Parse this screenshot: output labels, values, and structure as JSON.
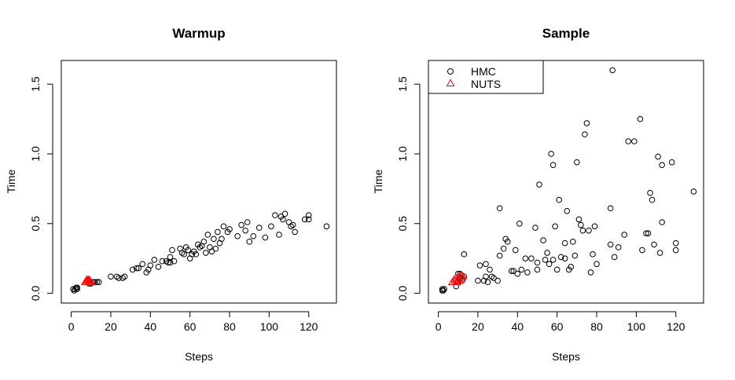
{
  "colors": {
    "hmc": "#000000",
    "nuts": "#ff0000",
    "frame": "#000000",
    "background": "#ffffff"
  },
  "chart_data": [
    {
      "type": "scatter",
      "title": "Warmup",
      "xlabel": "Steps",
      "ylabel": "Time",
      "xlim": [
        -5,
        134
      ],
      "ylim": [
        -0.07,
        1.67
      ],
      "xticks": [
        0,
        20,
        40,
        60,
        80,
        100,
        120
      ],
      "yticks": [
        0.0,
        0.5,
        1.0,
        1.5
      ],
      "xtick_labels": [
        "0",
        "20",
        "40",
        "60",
        "80",
        "100",
        "120"
      ],
      "ytick_labels": [
        "0.0",
        "0.5",
        "1.0",
        "1.5"
      ],
      "legend": null,
      "series": [
        {
          "marker": "circle",
          "color": "#000000",
          "points": [
            [
              1,
              0.03
            ],
            [
              1.5,
              0.02
            ],
            [
              2,
              0.03
            ],
            [
              2.5,
              0.04
            ],
            [
              3,
              0.03
            ],
            [
              3,
              0.04
            ],
            [
              9,
              0.07
            ],
            [
              10,
              0.07
            ],
            [
              11,
              0.08
            ],
            [
              12,
              0.08
            ],
            [
              13,
              0.08
            ],
            [
              14,
              0.08
            ],
            [
              20,
              0.12
            ],
            [
              23,
              0.12
            ],
            [
              24,
              0.11
            ],
            [
              26,
              0.11
            ],
            [
              27,
              0.12
            ],
            [
              31,
              0.17
            ],
            [
              33,
              0.18
            ],
            [
              34,
              0.18
            ],
            [
              36,
              0.21
            ],
            [
              38,
              0.15
            ],
            [
              39,
              0.17
            ],
            [
              40,
              0.2
            ],
            [
              42,
              0.24
            ],
            [
              44,
              0.19
            ],
            [
              46,
              0.23
            ],
            [
              48,
              0.23
            ],
            [
              49,
              0.22
            ],
            [
              50,
              0.26
            ],
            [
              50,
              0.22
            ],
            [
              51,
              0.31
            ],
            [
              52,
              0.23
            ],
            [
              55,
              0.32
            ],
            [
              56,
              0.29
            ],
            [
              57,
              0.28
            ],
            [
              58,
              0.33
            ],
            [
              59,
              0.31
            ],
            [
              60,
              0.25
            ],
            [
              61,
              0.28
            ],
            [
              62,
              0.3
            ],
            [
              63,
              0.28
            ],
            [
              64,
              0.35
            ],
            [
              65,
              0.33
            ],
            [
              66,
              0.34
            ],
            [
              67,
              0.37
            ],
            [
              68,
              0.29
            ],
            [
              69,
              0.42
            ],
            [
              70,
              0.33
            ],
            [
              71,
              0.3
            ],
            [
              72,
              0.39
            ],
            [
              73,
              0.32
            ],
            [
              74,
              0.44
            ],
            [
              75,
              0.36
            ],
            [
              76,
              0.39
            ],
            [
              77,
              0.48
            ],
            [
              79,
              0.44
            ],
            [
              80,
              0.46
            ],
            [
              84,
              0.41
            ],
            [
              86,
              0.49
            ],
            [
              88,
              0.45
            ],
            [
              89,
              0.51
            ],
            [
              90,
              0.37
            ],
            [
              92,
              0.41
            ],
            [
              95,
              0.47
            ],
            [
              98,
              0.4
            ],
            [
              101,
              0.48
            ],
            [
              103,
              0.56
            ],
            [
              105,
              0.42
            ],
            [
              106,
              0.55
            ],
            [
              107,
              0.53
            ],
            [
              108,
              0.57
            ],
            [
              110,
              0.51
            ],
            [
              111,
              0.48
            ],
            [
              112,
              0.49
            ],
            [
              113,
              0.44
            ],
            [
              118,
              0.53
            ],
            [
              120,
              0.56
            ],
            [
              120,
              0.53
            ],
            [
              129,
              0.48
            ]
          ]
        },
        {
          "marker": "triangle",
          "color": "#ff0000",
          "points": [
            [
              7,
              0.08
            ],
            [
              7.5,
              0.09
            ],
            [
              8,
              0.09
            ],
            [
              8,
              0.1
            ],
            [
              8.5,
              0.08
            ],
            [
              9,
              0.09
            ],
            [
              9,
              0.1
            ],
            [
              9.5,
              0.09
            ],
            [
              10,
              0.08
            ]
          ]
        }
      ]
    },
    {
      "type": "scatter",
      "title": "Sample",
      "xlabel": "Steps",
      "ylabel": "Time",
      "xlim": [
        -5,
        134
      ],
      "ylim": [
        -0.07,
        1.67
      ],
      "xticks": [
        0,
        20,
        40,
        60,
        80,
        100,
        120
      ],
      "yticks": [
        0.0,
        0.5,
        1.0,
        1.5
      ],
      "xtick_labels": [
        "0",
        "20",
        "40",
        "60",
        "80",
        "100",
        "120"
      ],
      "ytick_labels": [
        "0.0",
        "0.5",
        "1.0",
        "1.5"
      ],
      "legend": {
        "position": "top-left",
        "entries": [
          {
            "label": "HMC",
            "marker": "circle",
            "color": "#000000"
          },
          {
            "label": "NUTS",
            "marker": "triangle",
            "color": "#ff0000"
          }
        ]
      },
      "series": [
        {
          "name": "HMC",
          "marker": "circle",
          "color": "#000000",
          "points": [
            [
              2,
              0.03
            ],
            [
              2.5,
              0.02
            ],
            [
              3,
              0.03
            ],
            [
              2,
              0.02
            ],
            [
              9,
              0.05
            ],
            [
              10,
              0.14
            ],
            [
              10,
              0.08
            ],
            [
              11,
              0.11
            ],
            [
              11,
              0.14
            ],
            [
              12,
              0.09
            ],
            [
              13,
              0.28
            ],
            [
              13,
              0.12
            ],
            [
              20,
              0.09
            ],
            [
              21,
              0.2
            ],
            [
              23,
              0.09
            ],
            [
              24,
              0.21
            ],
            [
              24,
              0.12
            ],
            [
              25,
              0.08
            ],
            [
              26,
              0.17
            ],
            [
              27,
              0.12
            ],
            [
              28,
              0.11
            ],
            [
              30,
              0.09
            ],
            [
              31,
              0.61
            ],
            [
              31,
              0.27
            ],
            [
              33,
              0.32
            ],
            [
              34,
              0.39
            ],
            [
              35,
              0.37
            ],
            [
              37,
              0.16
            ],
            [
              38,
              0.16
            ],
            [
              39,
              0.31
            ],
            [
              40,
              0.14
            ],
            [
              41,
              0.5
            ],
            [
              42,
              0.17
            ],
            [
              44,
              0.25
            ],
            [
              45,
              0.15
            ],
            [
              47,
              0.25
            ],
            [
              49,
              0.47
            ],
            [
              50,
              0.22
            ],
            [
              50,
              0.17
            ],
            [
              51,
              0.78
            ],
            [
              53,
              0.38
            ],
            [
              54,
              0.24
            ],
            [
              55,
              0.29
            ],
            [
              56,
              0.21
            ],
            [
              57,
              1.0
            ],
            [
              58,
              0.24
            ],
            [
              58,
              0.92
            ],
            [
              59,
              0.48
            ],
            [
              60,
              0.17
            ],
            [
              61,
              0.67
            ],
            [
              62,
              0.26
            ],
            [
              64,
              0.25
            ],
            [
              64,
              0.36
            ],
            [
              65,
              0.59
            ],
            [
              66,
              0.17
            ],
            [
              67,
              0.19
            ],
            [
              68,
              0.37
            ],
            [
              69,
              0.27
            ],
            [
              70,
              0.94
            ],
            [
              71,
              0.53
            ],
            [
              72,
              0.49
            ],
            [
              73,
              0.45
            ],
            [
              74,
              1.14
            ],
            [
              75,
              1.22
            ],
            [
              76,
              0.45
            ],
            [
              77,
              0.15
            ],
            [
              78,
              0.28
            ],
            [
              79,
              0.48
            ],
            [
              80,
              0.21
            ],
            [
              87,
              0.61
            ],
            [
              87,
              0.35
            ],
            [
              88,
              1.6
            ],
            [
              89,
              0.26
            ],
            [
              91,
              0.33
            ],
            [
              94,
              0.42
            ],
            [
              96,
              1.09
            ],
            [
              99,
              1.09
            ],
            [
              102,
              1.25
            ],
            [
              103,
              0.31
            ],
            [
              105,
              0.43
            ],
            [
              106,
              0.43
            ],
            [
              107,
              0.72
            ],
            [
              108,
              0.67
            ],
            [
              109,
              0.35
            ],
            [
              111,
              0.98
            ],
            [
              112,
              0.29
            ],
            [
              113,
              0.92
            ],
            [
              113,
              0.51
            ],
            [
              118,
              0.94
            ],
            [
              120,
              0.36
            ],
            [
              120,
              0.31
            ],
            [
              129,
              0.73
            ]
          ]
        },
        {
          "name": "NUTS",
          "marker": "triangle",
          "color": "#ff0000",
          "points": [
            [
              7,
              0.08
            ],
            [
              8,
              0.1
            ],
            [
              8.5,
              0.09
            ],
            [
              9,
              0.11
            ],
            [
              9.5,
              0.08
            ],
            [
              10,
              0.1
            ],
            [
              10.5,
              0.12
            ],
            [
              11,
              0.09
            ],
            [
              11.5,
              0.13
            ],
            [
              12,
              0.11
            ],
            [
              12.5,
              0.12
            ]
          ]
        }
      ]
    }
  ]
}
